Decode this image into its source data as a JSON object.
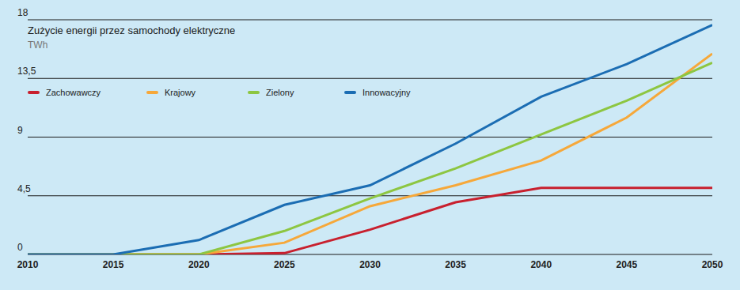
{
  "chart_data": {
    "type": "line",
    "title": "Zużycie energii przez samochody elektryczne",
    "subtitle": "TWh",
    "x": [
      2010,
      2015,
      2020,
      2025,
      2030,
      2035,
      2040,
      2045,
      2050
    ],
    "series": [
      {
        "name": "Zachowawczy",
        "color": "#c8202e",
        "values": [
          0,
          0,
          0,
          0.1,
          1.9,
          4.0,
          5.1,
          5.1,
          5.1
        ]
      },
      {
        "name": "Krajowy",
        "color": "#f6a83a",
        "values": [
          0,
          0,
          0,
          0.9,
          3.7,
          5.3,
          7.2,
          10.5,
          15.4
        ]
      },
      {
        "name": "Zielony",
        "color": "#8dc641",
        "values": [
          0,
          0,
          0,
          1.8,
          4.3,
          6.6,
          9.2,
          11.8,
          14.7
        ]
      },
      {
        "name": "Innowacyjny",
        "color": "#1b6db3",
        "values": [
          0,
          0,
          1.1,
          3.8,
          5.3,
          8.5,
          12.1,
          14.6,
          17.6
        ]
      }
    ],
    "xlim": [
      2010,
      2050
    ],
    "xticks": [
      2010,
      2015,
      2020,
      2025,
      2030,
      2035,
      2040,
      2045,
      2050
    ],
    "ylim": [
      0,
      18
    ],
    "yticks": [
      0,
      {
        "value": 4.5,
        "label": "4,5"
      },
      9,
      {
        "value": 13.5,
        "label": "13,5"
      },
      18
    ],
    "grid": true,
    "legend": "top-left"
  }
}
